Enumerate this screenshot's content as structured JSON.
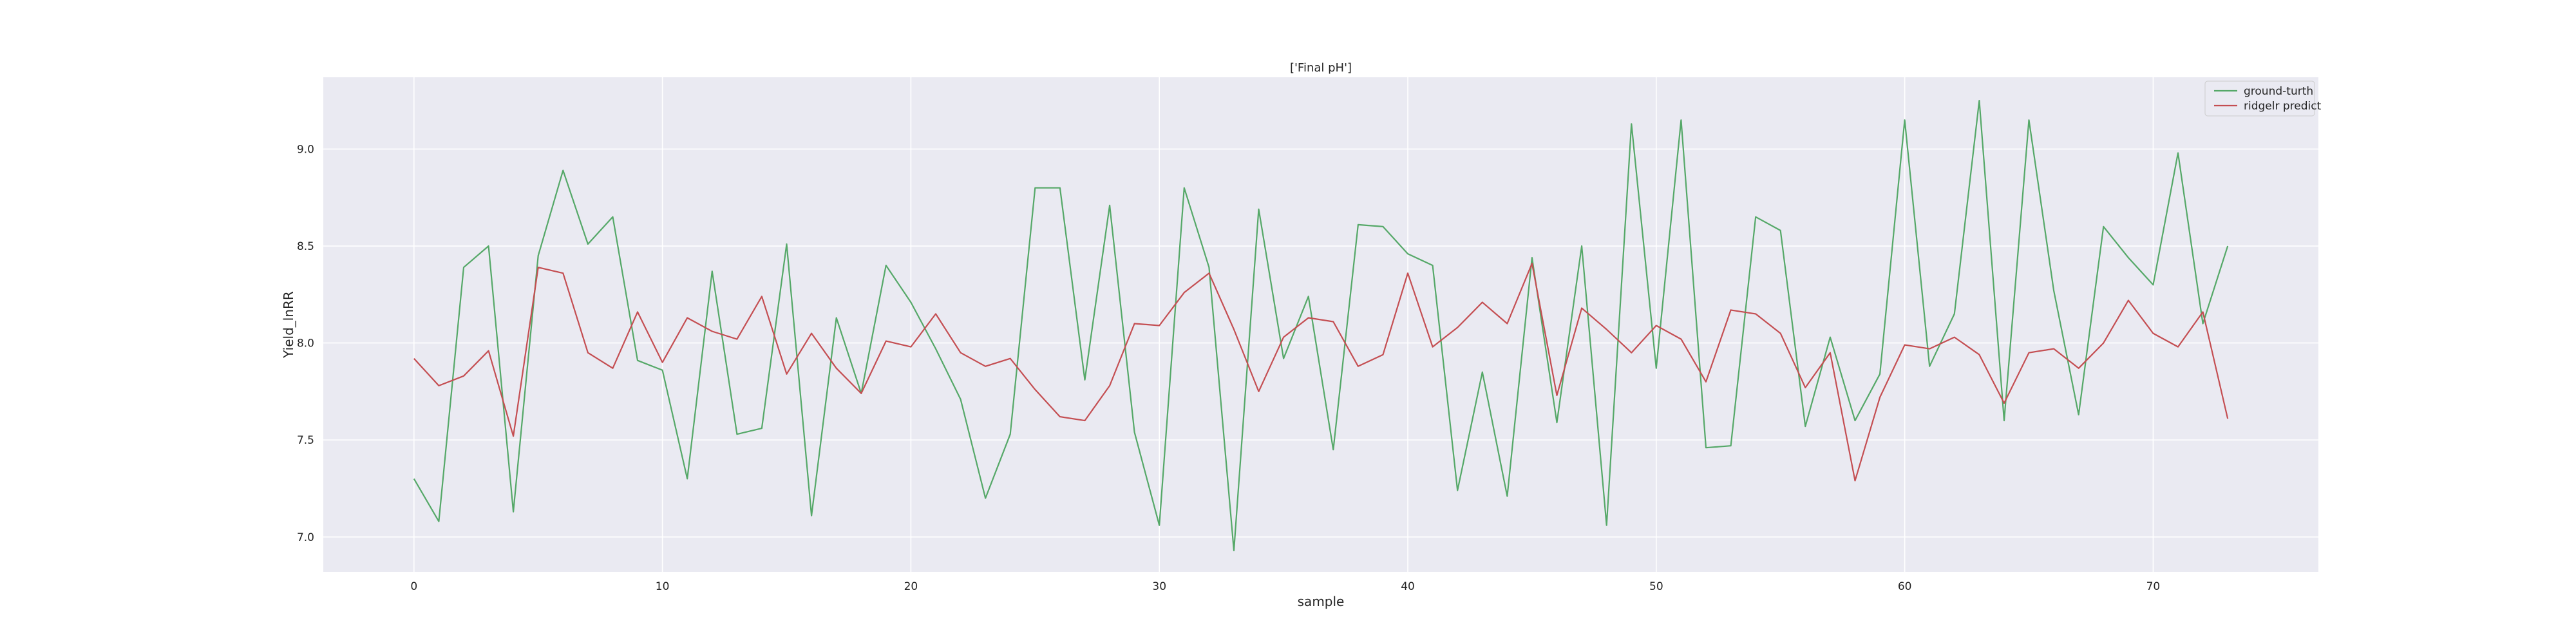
{
  "chart_data": {
    "type": "line",
    "title": "['Final pH']",
    "xlabel": "sample",
    "ylabel": "Yield_lnRR",
    "xlim": [
      -3.65,
      76.65
    ],
    "ylim": [
      6.82,
      9.37
    ],
    "xticks": [
      0,
      10,
      20,
      30,
      40,
      50,
      60,
      70
    ],
    "yticks": [
      7.0,
      7.5,
      8.0,
      8.5,
      9.0
    ],
    "xtick_labels": [
      "0",
      "10",
      "20",
      "30",
      "40",
      "50",
      "60",
      "70"
    ],
    "ytick_labels": [
      "7.0",
      "7.5",
      "8.0",
      "8.5",
      "9.0"
    ],
    "grid": true,
    "legend_position": "top-right",
    "x": [
      0,
      1,
      2,
      3,
      4,
      5,
      6,
      7,
      8,
      9,
      10,
      11,
      12,
      13,
      14,
      15,
      16,
      17,
      18,
      19,
      20,
      21,
      22,
      23,
      24,
      25,
      26,
      27,
      28,
      29,
      30,
      31,
      32,
      33,
      34,
      35,
      36,
      37,
      38,
      39,
      40,
      41,
      42,
      43,
      44,
      45,
      46,
      47,
      48,
      49,
      50,
      51,
      52,
      53,
      54,
      55,
      56,
      57,
      58,
      59,
      60,
      61,
      62,
      63,
      64,
      65,
      66,
      67,
      68,
      69,
      70,
      71,
      72,
      73
    ],
    "series": [
      {
        "name": "ground-turth",
        "color": "#55a868",
        "values": [
          7.3,
          7.08,
          8.39,
          8.5,
          7.13,
          8.45,
          8.89,
          8.51,
          8.65,
          7.91,
          7.86,
          7.3,
          8.37,
          7.53,
          7.56,
          8.51,
          7.11,
          8.13,
          7.74,
          8.4,
          8.21,
          7.97,
          7.71,
          7.2,
          7.53,
          8.8,
          8.8,
          7.81,
          8.71,
          7.54,
          7.06,
          8.8,
          8.39,
          6.93,
          8.69,
          7.92,
          8.24,
          7.45,
          8.61,
          8.6,
          8.46,
          8.4,
          7.24,
          7.85,
          7.21,
          8.44,
          7.59,
          8.5,
          7.06,
          9.13,
          7.87,
          9.15,
          7.46,
          7.47,
          8.65,
          8.58,
          7.57,
          8.03,
          7.6,
          7.84,
          9.15,
          7.88,
          8.15,
          9.25,
          7.6,
          9.15,
          8.27,
          7.63,
          8.6,
          8.44,
          8.3,
          8.98,
          8.1,
          8.5
        ]
      },
      {
        "name": "ridgelr predict",
        "color": "#c44e52",
        "values": [
          7.92,
          7.78,
          7.83,
          7.96,
          7.52,
          8.39,
          8.36,
          7.95,
          7.87,
          8.16,
          7.9,
          8.13,
          8.06,
          8.02,
          8.24,
          7.84,
          8.05,
          7.87,
          7.74,
          8.01,
          7.98,
          8.15,
          7.95,
          7.88,
          7.92,
          7.76,
          7.62,
          7.6,
          7.78,
          8.1,
          8.09,
          8.26,
          8.36,
          8.07,
          7.75,
          8.03,
          8.13,
          8.11,
          7.88,
          7.94,
          8.36,
          7.98,
          8.08,
          8.21,
          8.1,
          8.41,
          7.73,
          8.18,
          8.07,
          7.95,
          8.09,
          8.02,
          7.8,
          8.17,
          8.15,
          8.05,
          7.77,
          7.95,
          7.29,
          7.72,
          7.99,
          7.97,
          8.03,
          7.94,
          7.69,
          7.95,
          7.97,
          7.87,
          8.0,
          8.22,
          8.05,
          7.98,
          8.16,
          7.61
        ]
      }
    ]
  }
}
